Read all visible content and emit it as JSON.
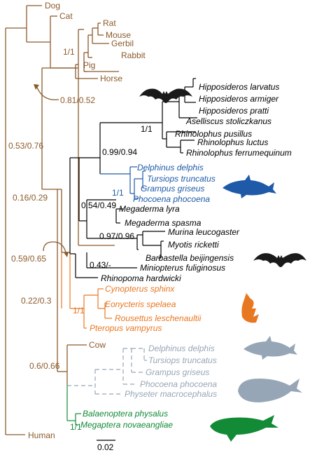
{
  "colors": {
    "brown": "#8b5a2b",
    "black": "#000000",
    "blue": "#1e5aa8",
    "orange": "#e87722",
    "gray": "#97a6b6",
    "green": "#138a36"
  },
  "taxa": {
    "dog": "Dog",
    "cat": "Cat",
    "rat": "Rat",
    "mouse": "Mouse",
    "gerbil": "Gerbil",
    "rabbit": "Rabbit",
    "pig": "Pig",
    "horse": "Horse",
    "h_larvatus": "Hipposideros larvatus",
    "h_armiger": "Hipposideros armiger",
    "h_pratti": "Hipposideros pratti",
    "a_stoliczkanus": "Aselliscus stoliczkanus",
    "r_pusillus": "Rhinolophus pusillus",
    "r_luctus": "Rhinolophus luctus",
    "r_ferrumequinum": "Rhinolophus ferrumequinum",
    "d_delphis": "Delphinus delphis",
    "t_truncatus": "Tursiops truncatus",
    "g_griseus": "Grampus griseus",
    "p_phocoena": "Phocoena phocoena",
    "m_lyra": "Megaderma lyra",
    "m_spasma": "Megaderma spasma",
    "m_leucogaster": "Murina leucogaster",
    "m_ricketti": "Myotis ricketti",
    "b_beijingensis": "Barbastella beijingensis",
    "m_fuliginosus": "Miniopterus fuliginosus",
    "r_hardwicki": "Rhinopoma hardwicki",
    "c_sphinx": "Cynopterus sphinx",
    "e_spelaea": "Eonycteris spelaea",
    "r_leschenaultii": "Rousettus leschenaultii",
    "p_vampyrus": "Pteropus vampyrus",
    "cow": "Cow",
    "d_delphis_g": "Delphinus delphis",
    "t_truncatus_g": "Tursiops truncatus",
    "g_griseus_g": "Grampus griseus",
    "p_phocoena_g": "Phocoena phocoena",
    "p_macrocephalus": "Physeter macrocephalus",
    "b_physalus": "Balaenoptera physalus",
    "m_novaeangliae": "Megaptera novaeangliae",
    "human": "Human"
  },
  "support": {
    "rodents": "1/1",
    "horse_clade": "0.81/0.52",
    "rhino": "1/1",
    "bat_dolphin": "0.99/0.94",
    "dolphins": "1/1",
    "echolocators": "0.54/0.49",
    "vesper": "0.97/0.96",
    "miniopterus": "0.43/-",
    "laurasia": "0.53/0.76",
    "upper": "0.16/0.29",
    "echo_fruit": "0.59/0.65",
    "fruitbats_node": "1/1",
    "mid": "0.22/0.3",
    "cetart": "0.6/0.66",
    "whales": "1/1"
  },
  "scale_bar": "0.02",
  "icons": {
    "bat_top": "bat-silhouette-icon",
    "dolphin_blue": "dolphin-silhouette-icon",
    "bat_bottom": "bat-silhouette-icon",
    "fruitbat": "fruit-bat-silhouette-icon",
    "dolphin_gray": "dolphin-silhouette-icon",
    "sperm_whale": "sperm-whale-silhouette-icon",
    "humpback": "humpback-whale-silhouette-icon"
  }
}
